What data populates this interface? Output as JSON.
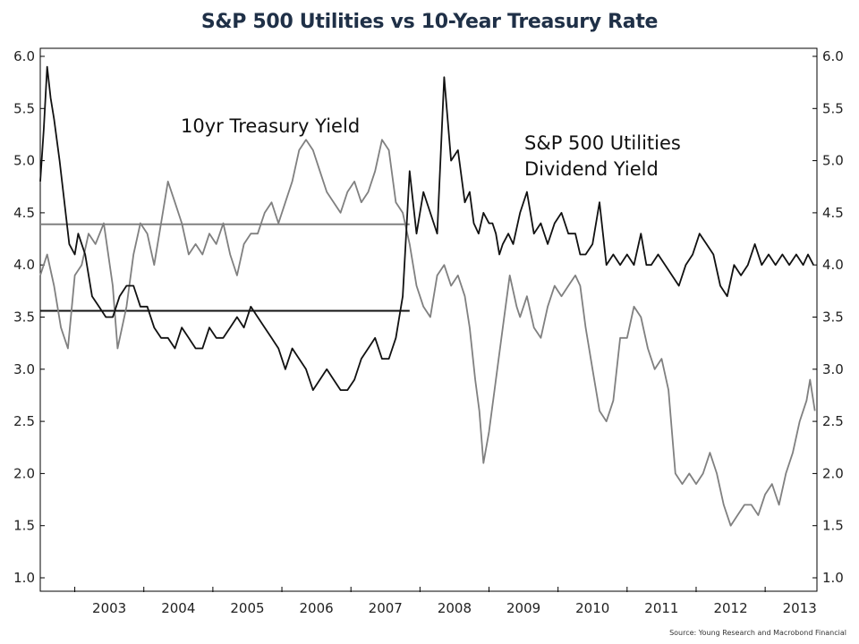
{
  "chart_data": {
    "type": "line",
    "title": "S&P 500 Utilities vs 10-Year Treasury Rate",
    "source": "Source: Young Research and Macrobond Financial",
    "x_tick_labels": [
      "2003",
      "2004",
      "2005",
      "2006",
      "2007",
      "2008",
      "2009",
      "2010",
      "2011",
      "2012",
      "2013"
    ],
    "x_range": [
      2002.5,
      2013.75
    ],
    "ylim": [
      1.0,
      6.0
    ],
    "y_ticks": [
      "1.0",
      "1.5",
      "2.0",
      "2.5",
      "3.0",
      "3.5",
      "4.0",
      "4.5",
      "5.0",
      "5.5",
      "6.0"
    ],
    "y_right_ticks": [
      "1.0",
      "1.5",
      "2.0",
      "2.5",
      "3.0",
      "3.5",
      "4.0",
      "4.5",
      "5.0",
      "5.5",
      "6.0"
    ],
    "annotations": {
      "treasury": "10yr Treasury Yield",
      "utilities_line1": "S&P 500 Utilities",
      "utilities_line2": "Dividend Yield"
    },
    "series": [
      {
        "label": "10yr Treasury Yield",
        "color": "#808080",
        "x": [
          2002.5,
          2002.6,
          2002.7,
          2002.8,
          2002.9,
          2003.0,
          2003.1,
          2003.2,
          2003.3,
          2003.42,
          2003.55,
          2003.62,
          2003.75,
          2003.85,
          2003.95,
          2004.05,
          2004.15,
          2004.25,
          2004.35,
          2004.45,
          2004.55,
          2004.65,
          2004.75,
          2004.85,
          2004.95,
          2005.05,
          2005.15,
          2005.25,
          2005.35,
          2005.45,
          2005.55,
          2005.65,
          2005.75,
          2005.85,
          2005.95,
          2006.05,
          2006.15,
          2006.25,
          2006.35,
          2006.45,
          2006.55,
          2006.65,
          2006.75,
          2006.85,
          2006.95,
          2007.05,
          2007.15,
          2007.25,
          2007.35,
          2007.45,
          2007.55,
          2007.65,
          2007.75,
          2007.85,
          2007.95,
          2008.05,
          2008.15,
          2008.25,
          2008.35,
          2008.45,
          2008.55,
          2008.65,
          2008.72,
          2008.8,
          2008.86,
          2008.92,
          2009.0,
          2009.1,
          2009.2,
          2009.3,
          2009.4,
          2009.45,
          2009.55,
          2009.65,
          2009.75,
          2009.85,
          2009.95,
          2010.05,
          2010.15,
          2010.25,
          2010.32,
          2010.4,
          2010.5,
          2010.6,
          2010.7,
          2010.8,
          2010.9,
          2011.0,
          2011.1,
          2011.2,
          2011.3,
          2011.4,
          2011.5,
          2011.6,
          2011.7,
          2011.8,
          2011.9,
          2012.0,
          2012.1,
          2012.2,
          2012.3,
          2012.4,
          2012.5,
          2012.6,
          2012.7,
          2012.8,
          2012.9,
          2013.0,
          2013.1,
          2013.2,
          2013.3,
          2013.4,
          2013.5,
          2013.6,
          2013.65,
          2013.72
        ],
        "y": [
          3.9,
          4.1,
          3.8,
          3.4,
          3.2,
          3.9,
          4.0,
          4.3,
          4.2,
          4.4,
          3.8,
          3.2,
          3.6,
          4.1,
          4.4,
          4.3,
          4.0,
          4.4,
          4.8,
          4.6,
          4.4,
          4.1,
          4.2,
          4.1,
          4.3,
          4.2,
          4.4,
          4.1,
          3.9,
          4.2,
          4.3,
          4.3,
          4.5,
          4.6,
          4.4,
          4.6,
          4.8,
          5.1,
          5.2,
          5.1,
          4.9,
          4.7,
          4.6,
          4.5,
          4.7,
          4.8,
          4.6,
          4.7,
          4.9,
          5.2,
          5.1,
          4.6,
          4.5,
          4.2,
          3.8,
          3.6,
          3.5,
          3.9,
          4.0,
          3.8,
          3.9,
          3.7,
          3.4,
          2.9,
          2.6,
          2.1,
          2.4,
          2.9,
          3.4,
          3.9,
          3.6,
          3.5,
          3.7,
          3.4,
          3.3,
          3.6,
          3.8,
          3.7,
          3.8,
          3.9,
          3.8,
          3.4,
          3.0,
          2.6,
          2.5,
          2.7,
          3.3,
          3.3,
          3.6,
          3.5,
          3.2,
          3.0,
          3.1,
          2.8,
          2.0,
          1.9,
          2.0,
          1.9,
          2.0,
          2.2,
          2.0,
          1.7,
          1.5,
          1.6,
          1.7,
          1.7,
          1.6,
          1.8,
          1.9,
          1.7,
          2.0,
          2.2,
          2.5,
          2.7,
          2.9,
          2.6
        ]
      },
      {
        "label": "S&P 500 Utilities Dividend Yield",
        "color": "#111111",
        "x": [
          2002.5,
          2002.55,
          2002.6,
          2002.65,
          2002.7,
          2002.78,
          2002.85,
          2002.92,
          2003.0,
          2003.05,
          2003.15,
          2003.25,
          2003.35,
          2003.45,
          2003.55,
          2003.65,
          2003.75,
          2003.85,
          2003.95,
          2004.05,
          2004.15,
          2004.25,
          2004.35,
          2004.45,
          2004.55,
          2004.65,
          2004.75,
          2004.85,
          2004.95,
          2005.05,
          2005.15,
          2005.25,
          2005.35,
          2005.45,
          2005.55,
          2005.65,
          2005.75,
          2005.85,
          2005.95,
          2006.05,
          2006.15,
          2006.25,
          2006.35,
          2006.45,
          2006.55,
          2006.65,
          2006.75,
          2006.85,
          2006.95,
          2007.05,
          2007.15,
          2007.25,
          2007.35,
          2007.45,
          2007.55,
          2007.65,
          2007.75,
          2007.85,
          2007.95,
          2008.05,
          2008.15,
          2008.25,
          2008.35,
          2008.45,
          2008.55,
          2008.65,
          2008.72,
          2008.78,
          2008.85,
          2008.92,
          2009.0,
          2009.05,
          2009.1,
          2009.15,
          2009.2,
          2009.28,
          2009.35,
          2009.45,
          2009.55,
          2009.65,
          2009.75,
          2009.85,
          2009.95,
          2010.05,
          2010.15,
          2010.25,
          2010.32,
          2010.4,
          2010.5,
          2010.6,
          2010.7,
          2010.8,
          2010.9,
          2011.0,
          2011.1,
          2011.2,
          2011.28,
          2011.35,
          2011.45,
          2011.55,
          2011.65,
          2011.75,
          2011.85,
          2011.95,
          2012.05,
          2012.15,
          2012.25,
          2012.35,
          2012.45,
          2012.55,
          2012.65,
          2012.75,
          2012.85,
          2012.95,
          2013.05,
          2013.15,
          2013.25,
          2013.35,
          2013.45,
          2013.55,
          2013.62,
          2013.7
        ],
        "y": [
          4.8,
          5.3,
          5.9,
          5.6,
          5.4,
          5.0,
          4.6,
          4.2,
          4.1,
          4.3,
          4.1,
          3.7,
          3.6,
          3.5,
          3.5,
          3.7,
          3.8,
          3.8,
          3.6,
          3.6,
          3.4,
          3.3,
          3.3,
          3.2,
          3.4,
          3.3,
          3.2,
          3.2,
          3.4,
          3.3,
          3.3,
          3.4,
          3.5,
          3.4,
          3.6,
          3.5,
          3.4,
          3.3,
          3.2,
          3.0,
          3.2,
          3.1,
          3.0,
          2.8,
          2.9,
          3.0,
          2.9,
          2.8,
          2.8,
          2.9,
          3.1,
          3.2,
          3.3,
          3.1,
          3.1,
          3.3,
          3.7,
          4.9,
          4.3,
          4.7,
          4.5,
          4.3,
          5.8,
          5.0,
          5.1,
          4.6,
          4.7,
          4.4,
          4.3,
          4.5,
          4.4,
          4.4,
          4.3,
          4.1,
          4.2,
          4.3,
          4.2,
          4.5,
          4.7,
          4.3,
          4.4,
          4.2,
          4.4,
          4.5,
          4.3,
          4.3,
          4.1,
          4.1,
          4.2,
          4.6,
          4.0,
          4.1,
          4.0,
          4.1,
          4.0,
          4.3,
          4.0,
          4.0,
          4.1,
          4.0,
          3.9,
          3.8,
          4.0,
          4.1,
          4.3,
          4.2,
          4.1,
          3.8,
          3.7,
          4.0,
          3.9,
          4.0,
          4.2,
          4.0,
          4.1,
          4.0,
          4.1,
          4.0,
          4.1,
          4.0,
          4.1,
          4.0
        ]
      }
    ],
    "reference_lines": [
      {
        "label": "10yr Treasury Yield average",
        "color": "#808080",
        "y": 4.39,
        "x_from": 2002.5,
        "x_to": 2007.85
      },
      {
        "label": "S&P 500 Utilities Dividend Yield average",
        "color": "#111111",
        "y": 3.56,
        "x_from": 2002.5,
        "x_to": 2007.85
      }
    ]
  }
}
